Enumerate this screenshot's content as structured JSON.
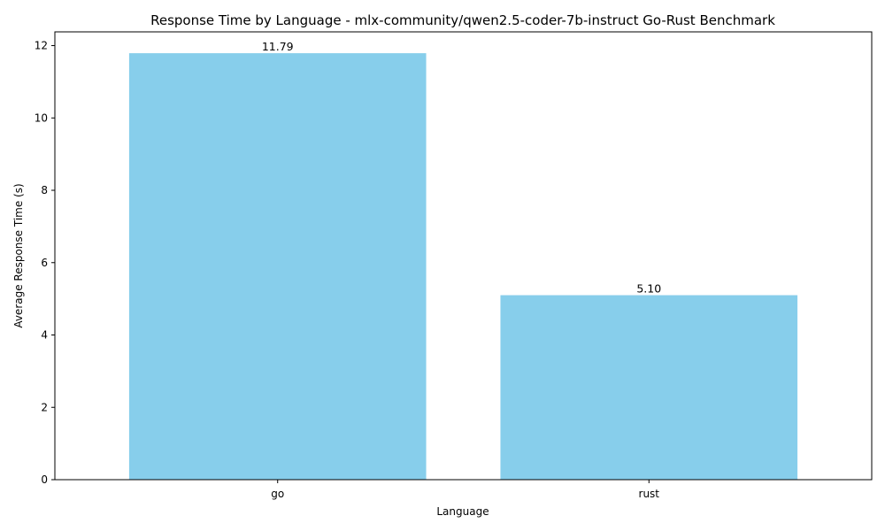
{
  "chart_data": {
    "type": "bar",
    "title": "Response Time by Language - mlx-community/qwen2.5-coder-7b-instruct Go-Rust Benchmark",
    "xlabel": "Language",
    "ylabel": "Average Response Time (s)",
    "categories": [
      "go",
      "rust"
    ],
    "values": [
      11.79,
      5.1
    ],
    "data_labels": [
      "11.79",
      "5.10"
    ],
    "ylim": [
      0,
      12.38
    ],
    "yticks": [
      0,
      2,
      4,
      6,
      8,
      10,
      12
    ],
    "bar_color": "#87CEEB",
    "grid": false,
    "legend": "none"
  }
}
